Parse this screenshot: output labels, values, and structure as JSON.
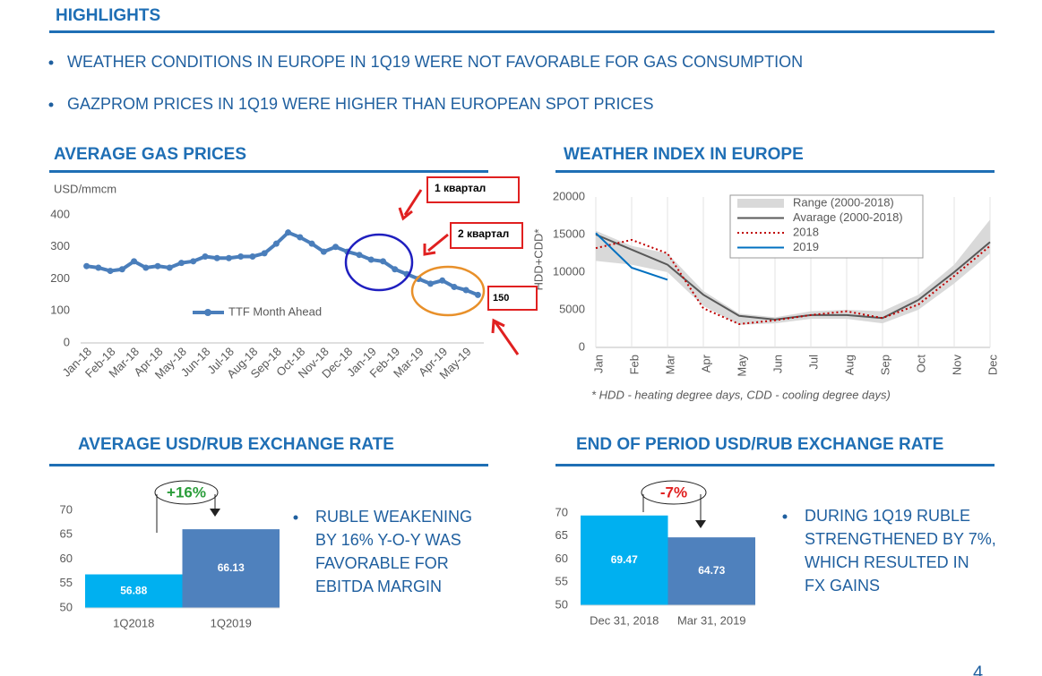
{
  "header": {
    "title": "HIGHLIGHTS"
  },
  "bullets": [
    "WEATHER CONDITIONS IN EUROPE IN 1Q19 WERE NOT FAVORABLE FOR GAS CONSUMPTION",
    "GAZPROM PRICES IN 1Q19 WERE HIGHER THAN EUROPEAN SPOT PRICES"
  ],
  "page_number": "4",
  "chart_data": [
    {
      "type": "line",
      "title": "AVERAGE GAS PRICES",
      "y_label": "USD/mmcm",
      "categories": [
        "Jan-18",
        null,
        "Feb-18",
        null,
        "Mar-18",
        null,
        "Apr-18",
        null,
        "May-18",
        null,
        "Jun-18",
        null,
        "Jul-18",
        null,
        "Aug-18",
        null,
        "Sep-18",
        null,
        "Oct-18",
        null,
        "Nov-18",
        null,
        "Dec-18",
        null,
        "Jan-19",
        null,
        "Feb-19",
        null,
        "Mar-19",
        null,
        "Apr-19",
        null,
        "May-19",
        null
      ],
      "series": [
        {
          "name": "TTF Month Ahead",
          "color": "#4a7ebb",
          "values": [
            240,
            235,
            225,
            230,
            255,
            235,
            240,
            235,
            250,
            255,
            270,
            265,
            265,
            270,
            270,
            280,
            310,
            345,
            330,
            310,
            285,
            300,
            285,
            275,
            260,
            255,
            230,
            215,
            200,
            185,
            195,
            175,
            165,
            150
          ]
        }
      ],
      "ylim": [
        0,
        400
      ],
      "yticks": [
        0,
        100,
        200,
        300,
        400
      ],
      "grid": false,
      "annotations": [
        "1 квартал",
        "2 квартал",
        "150"
      ]
    },
    {
      "type": "line",
      "title": "WEATHER INDEX IN EUROPE",
      "y_label": "HDD+CDD*",
      "categories": [
        "Jan",
        "Feb",
        "Mar",
        "Apr",
        "May",
        "Jun",
        "Jul",
        "Aug",
        "Sep",
        "Oct",
        "Nov",
        "Dec"
      ],
      "series": [
        {
          "name": "Range (2000-2018)",
          "color": "#d9d9d9",
          "high": [
            15500,
            13500,
            12500,
            7500,
            4500,
            4000,
            4800,
            5000,
            4800,
            7000,
            11000,
            17000
          ],
          "low": [
            11500,
            11000,
            10000,
            5500,
            3000,
            3200,
            3800,
            3800,
            3200,
            5000,
            8500,
            12500
          ]
        },
        {
          "name": "Avarage (2000-2018)",
          "color": "#595959",
          "values": [
            15000,
            13000,
            11000,
            7000,
            4200,
            3700,
            4300,
            4300,
            3900,
            6300,
            10000,
            14000
          ]
        },
        {
          "name": "2018",
          "color": "#c00000",
          "line_style": "dotted",
          "values": [
            13200,
            14300,
            12500,
            5200,
            3100,
            3600,
            4300,
            4800,
            3900,
            5700,
            9500,
            13500
          ]
        },
        {
          "name": "2019",
          "color": "#0070c0",
          "values": [
            15200,
            10600,
            9000,
            null,
            null,
            null,
            null,
            null,
            null,
            null,
            null,
            null
          ]
        }
      ],
      "ylim": [
        0,
        20000
      ],
      "yticks": [
        0,
        5000,
        10000,
        15000,
        20000
      ],
      "grid": true,
      "footnote": "* HDD - heating degree days, CDD - cooling degree days)"
    },
    {
      "type": "bar",
      "title": "AVERAGE USD/RUB EXCHANGE RATE",
      "categories": [
        "1Q2018",
        "1Q2019"
      ],
      "values": [
        56.88,
        66.13
      ],
      "colors": [
        "#00b0f0",
        "#4f81bd"
      ],
      "ylim": [
        50,
        70
      ],
      "yticks": [
        50,
        55,
        60,
        65,
        70
      ],
      "annotation": "+16%",
      "annotation_color": "#2a9d3a",
      "note": [
        "RUBLE WEAKENING",
        "BY 16% Y-O-Y WAS",
        "FAVORABLE FOR",
        "EBITDA MARGIN"
      ]
    },
    {
      "type": "bar",
      "title": "END OF PERIOD USD/RUB EXCHANGE RATE",
      "categories": [
        "Dec 31, 2018",
        "Mar 31, 2019"
      ],
      "values": [
        69.47,
        64.73
      ],
      "colors": [
        "#00b0f0",
        "#4f81bd"
      ],
      "ylim": [
        50,
        70
      ],
      "yticks": [
        50,
        55,
        60,
        65,
        70
      ],
      "annotation": "-7%",
      "annotation_color": "#e02020",
      "note": [
        "DURING 1Q19 RUBLE",
        "STRENGTHENED BY 7%,",
        "WHICH RESULTED IN",
        "FX GAINS"
      ]
    }
  ]
}
